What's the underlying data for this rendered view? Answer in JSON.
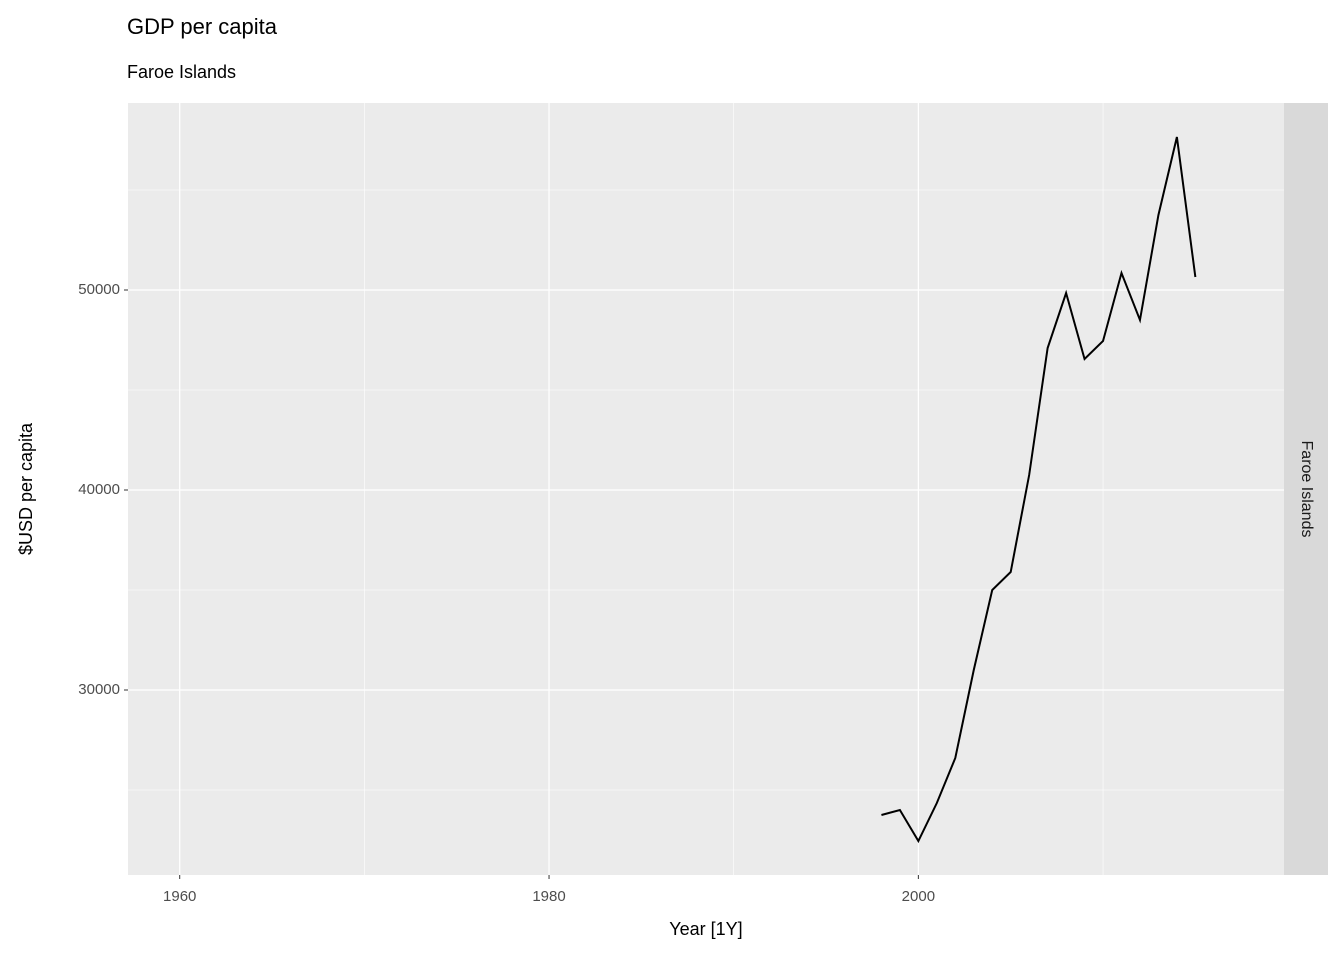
{
  "chart_data": {
    "type": "line",
    "title": "GDP per capita",
    "subtitle": "Faroe Islands",
    "facet": "Faroe Islands",
    "x_label": "Year [1Y]",
    "y_label": "$USD per capita",
    "x": [
      1998,
      1999,
      2000,
      2001,
      2002,
      2003,
      2004,
      2005,
      2006,
      2007,
      2008,
      2009,
      2010,
      2011,
      2012,
      2013,
      2014,
      2015
    ],
    "series": [
      {
        "name": "Faroe Islands",
        "color": "#000000",
        "values": [
          23750,
          24000,
          22450,
          24350,
          26600,
          31000,
          35000,
          35900,
          40750,
          47100,
          49850,
          46550,
          47450,
          50850,
          48500,
          53750,
          57650,
          50650
        ]
      }
    ],
    "xlim": [
      1957.2,
      2019.8
    ],
    "xticks": [
      1960,
      1980,
      2000
    ],
    "x_minor_ticks": [
      1970,
      1990,
      2010
    ],
    "ylim": [
      20750,
      59350
    ],
    "yticks": [
      30000,
      40000,
      50000
    ],
    "y_minor_ticks": [
      25000,
      35000,
      45000,
      55000
    ],
    "grid": true
  }
}
